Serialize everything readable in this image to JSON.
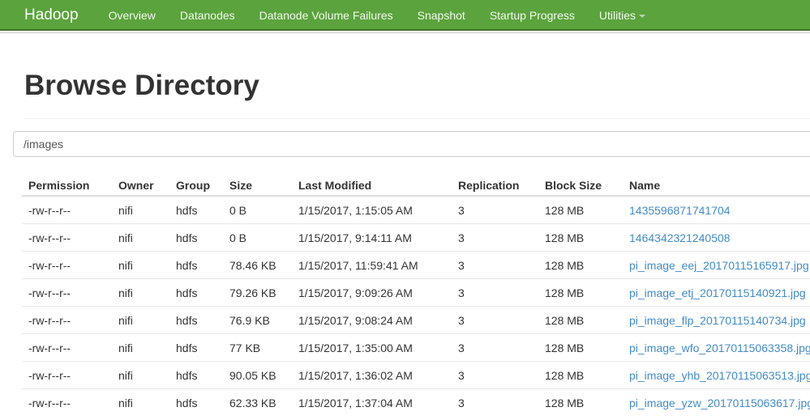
{
  "navbar": {
    "brand": "Hadoop",
    "items": [
      {
        "label": "Overview"
      },
      {
        "label": "Datanodes"
      },
      {
        "label": "Datanode Volume Failures"
      },
      {
        "label": "Snapshot"
      },
      {
        "label": "Startup Progress"
      },
      {
        "label": "Utilities"
      }
    ]
  },
  "page": {
    "title": "Browse Directory"
  },
  "path_input": {
    "value": "/images"
  },
  "table": {
    "columns": [
      "Permission",
      "Owner",
      "Group",
      "Size",
      "Last Modified",
      "Replication",
      "Block Size",
      "Name"
    ],
    "rows": [
      {
        "permission": "-rw-r--r--",
        "owner": "nifi",
        "group": "hdfs",
        "size": "0 B",
        "modified": "1/15/2017, 1:15:05 AM",
        "replication": "3",
        "block_size": "128 MB",
        "name": "1435596871741704"
      },
      {
        "permission": "-rw-r--r--",
        "owner": "nifi",
        "group": "hdfs",
        "size": "0 B",
        "modified": "1/15/2017, 9:14:11 AM",
        "replication": "3",
        "block_size": "128 MB",
        "name": "1464342321240508"
      },
      {
        "permission": "-rw-r--r--",
        "owner": "nifi",
        "group": "hdfs",
        "size": "78.46 KB",
        "modified": "1/15/2017, 11:59:41 AM",
        "replication": "3",
        "block_size": "128 MB",
        "name": "pi_image_eej_20170115165917.jpg"
      },
      {
        "permission": "-rw-r--r--",
        "owner": "nifi",
        "group": "hdfs",
        "size": "79.26 KB",
        "modified": "1/15/2017, 9:09:26 AM",
        "replication": "3",
        "block_size": "128 MB",
        "name": "pi_image_etj_20170115140921.jpg"
      },
      {
        "permission": "-rw-r--r--",
        "owner": "nifi",
        "group": "hdfs",
        "size": "76.9 KB",
        "modified": "1/15/2017, 9:08:24 AM",
        "replication": "3",
        "block_size": "128 MB",
        "name": "pi_image_flp_20170115140734.jpg"
      },
      {
        "permission": "-rw-r--r--",
        "owner": "nifi",
        "group": "hdfs",
        "size": "77 KB",
        "modified": "1/15/2017, 1:35:00 AM",
        "replication": "3",
        "block_size": "128 MB",
        "name": "pi_image_wfo_20170115063358.jpg"
      },
      {
        "permission": "-rw-r--r--",
        "owner": "nifi",
        "group": "hdfs",
        "size": "90.05 KB",
        "modified": "1/15/2017, 1:36:02 AM",
        "replication": "3",
        "block_size": "128 MB",
        "name": "pi_image_yhb_20170115063513.jpg"
      },
      {
        "permission": "-rw-r--r--",
        "owner": "nifi",
        "group": "hdfs",
        "size": "62.33 KB",
        "modified": "1/15/2017, 1:37:04 AM",
        "replication": "3",
        "block_size": "128 MB",
        "name": "pi_image_yzw_20170115063617.jpg"
      }
    ]
  },
  "colors": {
    "navbar_green": "#5ba33c",
    "navbar_border_green": "#3f7227",
    "navbar_shadow_gray": "#c9c9c9",
    "link_blue": "#428bca",
    "text": "#333333",
    "table_border": "#dddddd",
    "input_border": "#cccccc",
    "hr_gray": "#eeeeee"
  }
}
